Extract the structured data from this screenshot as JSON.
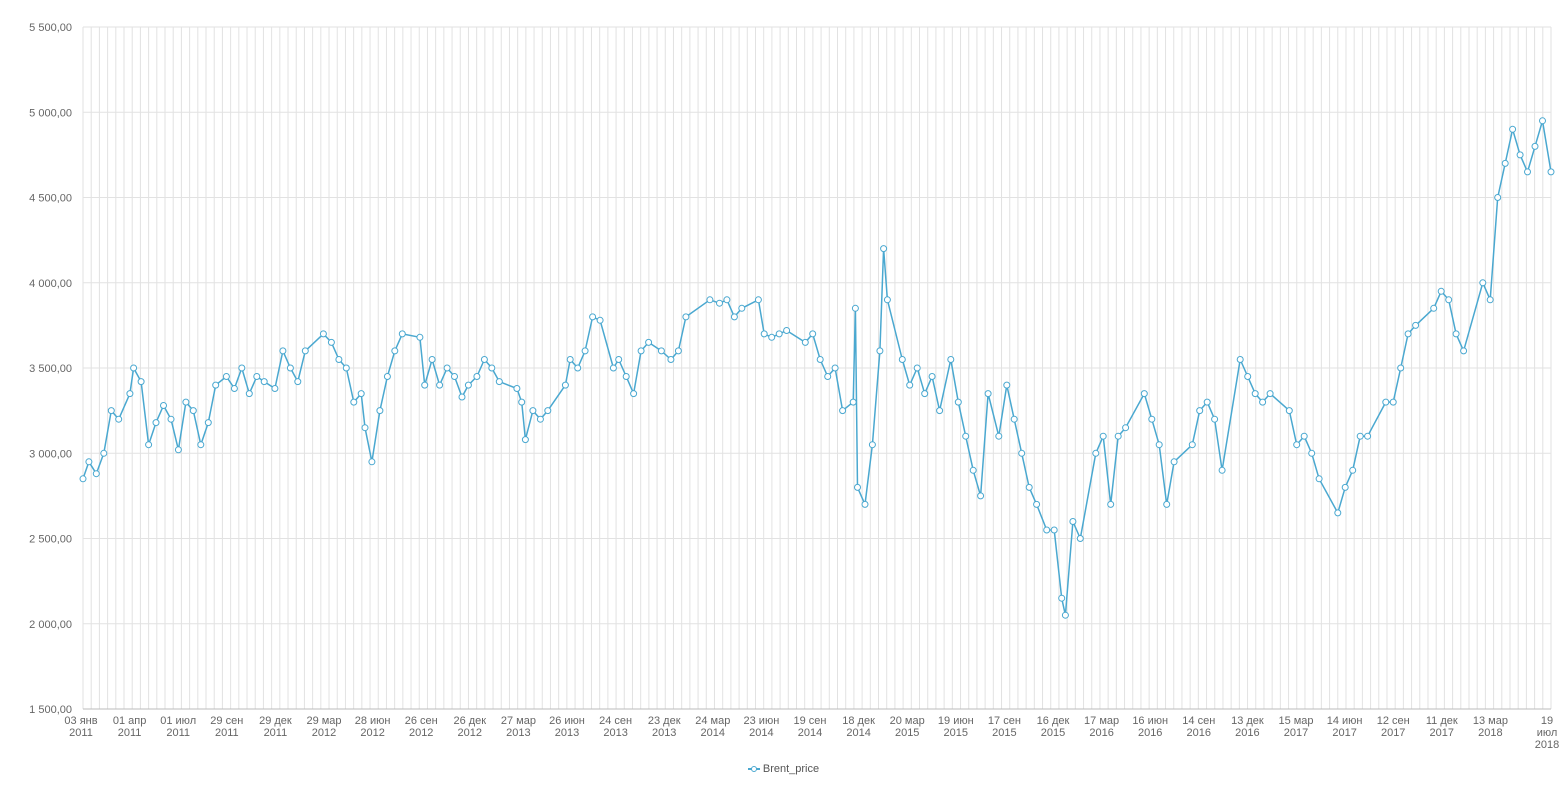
{
  "chart_data": {
    "type": "line",
    "series": [
      {
        "name": "Brent_price",
        "points": [
          [
            "03 янв 2011",
            2850
          ],
          [
            "2011-01-14",
            2950
          ],
          [
            "2011-01-28",
            2880
          ],
          [
            "2011-02-11",
            3000
          ],
          [
            "2011-02-25",
            3250
          ],
          [
            "2011-03-11",
            3200
          ],
          [
            "01 апр 2011",
            3350
          ],
          [
            "2011-04-08",
            3500
          ],
          [
            "2011-04-22",
            3420
          ],
          [
            "2011-05-06",
            3050
          ],
          [
            "2011-05-20",
            3180
          ],
          [
            "2011-06-03",
            3280
          ],
          [
            "2011-06-17",
            3200
          ],
          [
            "01 июл 2011",
            3020
          ],
          [
            "2011-07-15",
            3300
          ],
          [
            "2011-07-29",
            3250
          ],
          [
            "2011-08-12",
            3050
          ],
          [
            "2011-08-26",
            3180
          ],
          [
            "2011-09-09",
            3400
          ],
          [
            "29 сен 2011",
            3450
          ],
          [
            "2011-10-14",
            3380
          ],
          [
            "2011-10-28",
            3500
          ],
          [
            "2011-11-11",
            3350
          ],
          [
            "2011-11-25",
            3450
          ],
          [
            "2011-12-09",
            3420
          ],
          [
            "29 дек 2011",
            3380
          ],
          [
            "2012-01-13",
            3600
          ],
          [
            "2012-01-27",
            3500
          ],
          [
            "2012-02-10",
            3420
          ],
          [
            "2012-02-24",
            3600
          ],
          [
            "29 мар 2012",
            3700
          ],
          [
            "2012-04-13",
            3650
          ],
          [
            "2012-04-27",
            3550
          ],
          [
            "2012-05-11",
            3500
          ],
          [
            "2012-05-25",
            3300
          ],
          [
            "2012-06-08",
            3350
          ],
          [
            "2012-06-15",
            3150
          ],
          [
            "28 июн 2012",
            2950
          ],
          [
            "2012-07-13",
            3250
          ],
          [
            "2012-07-27",
            3450
          ],
          [
            "2012-08-10",
            3600
          ],
          [
            "2012-08-24",
            3700
          ],
          [
            "26 сен 2012",
            3680
          ],
          [
            "2012-10-05",
            3400
          ],
          [
            "2012-10-19",
            3550
          ],
          [
            "2012-11-02",
            3400
          ],
          [
            "2012-11-16",
            3500
          ],
          [
            "2012-11-30",
            3450
          ],
          [
            "2012-12-14",
            3330
          ],
          [
            "26 дек 2012",
            3400
          ],
          [
            "2013-01-11",
            3450
          ],
          [
            "2013-01-25",
            3550
          ],
          [
            "2013-02-08",
            3500
          ],
          [
            "2013-02-22",
            3420
          ],
          [
            "27 мар 2013",
            3380
          ],
          [
            "2013-04-05",
            3300
          ],
          [
            "2013-04-12",
            3080
          ],
          [
            "2013-04-26",
            3250
          ],
          [
            "2013-05-10",
            3200
          ],
          [
            "2013-05-24",
            3250
          ],
          [
            "26 июн 2013",
            3400
          ],
          [
            "2013-07-05",
            3550
          ],
          [
            "2013-07-19",
            3500
          ],
          [
            "2013-08-02",
            3600
          ],
          [
            "2013-08-16",
            3800
          ],
          [
            "2013-08-30",
            3780
          ],
          [
            "24 сен 2013",
            3500
          ],
          [
            "2013-10-04",
            3550
          ],
          [
            "2013-10-18",
            3450
          ],
          [
            "2013-11-01",
            3350
          ],
          [
            "2013-11-15",
            3600
          ],
          [
            "2013-11-29",
            3650
          ],
          [
            "23 дек 2013",
            3600
          ],
          [
            "2014-01-10",
            3550
          ],
          [
            "2014-01-24",
            3600
          ],
          [
            "2014-02-07",
            3800
          ],
          [
            "24 мар 2014",
            3900
          ],
          [
            "2014-04-11",
            3880
          ],
          [
            "2014-04-25",
            3900
          ],
          [
            "2014-05-09",
            3800
          ],
          [
            "2014-05-23",
            3850
          ],
          [
            "23 июн 2014",
            3900
          ],
          [
            "2014-07-04",
            3700
          ],
          [
            "2014-07-18",
            3680
          ],
          [
            "2014-08-01",
            3700
          ],
          [
            "2014-08-15",
            3720
          ],
          [
            "19 сен 2014",
            3650
          ],
          [
            "2014-10-03",
            3700
          ],
          [
            "2014-10-17",
            3550
          ],
          [
            "2014-10-31",
            3450
          ],
          [
            "2014-11-14",
            3500
          ],
          [
            "2014-11-28",
            3250
          ],
          [
            "18 дек 2014",
            3300
          ],
          [
            "2014-12-22",
            3850
          ],
          [
            "2014-12-26",
            2800
          ],
          [
            "2015-01-09",
            2700
          ],
          [
            "2015-01-23",
            3050
          ],
          [
            "2015-02-06",
            3600
          ],
          [
            "2015-02-13",
            4200
          ],
          [
            "2015-02-20",
            3900
          ],
          [
            "20 мар 2015",
            3550
          ],
          [
            "2015-04-03",
            3400
          ],
          [
            "2015-04-17",
            3500
          ],
          [
            "2015-05-01",
            3350
          ],
          [
            "2015-05-15",
            3450
          ],
          [
            "2015-05-29",
            3250
          ],
          [
            "19 июн 2015",
            3550
          ],
          [
            "2015-07-03",
            3300
          ],
          [
            "2015-07-17",
            3100
          ],
          [
            "2015-07-31",
            2900
          ],
          [
            "2015-08-14",
            2750
          ],
          [
            "2015-08-28",
            3350
          ],
          [
            "17 сен 2015",
            3100
          ],
          [
            "2015-10-02",
            3400
          ],
          [
            "2015-10-16",
            3200
          ],
          [
            "2015-10-30",
            3000
          ],
          [
            "2015-11-13",
            2800
          ],
          [
            "2015-11-27",
            2700
          ],
          [
            "16 дек 2015",
            2550
          ],
          [
            "2015-12-30",
            2550
          ],
          [
            "2016-01-13",
            2150
          ],
          [
            "2016-01-20",
            2050
          ],
          [
            "2016-02-03",
            2600
          ],
          [
            "2016-02-17",
            2500
          ],
          [
            "17 мар 2016",
            3000
          ],
          [
            "2016-03-31",
            3100
          ],
          [
            "2016-04-14",
            2700
          ],
          [
            "2016-04-28",
            3100
          ],
          [
            "2016-05-12",
            3150
          ],
          [
            "16 июн 2016",
            3350
          ],
          [
            "2016-06-30",
            3200
          ],
          [
            "2016-07-14",
            3050
          ],
          [
            "2016-07-28",
            2700
          ],
          [
            "2016-08-11",
            2950
          ],
          [
            "14 сен 2016",
            3050
          ],
          [
            "2016-09-28",
            3250
          ],
          [
            "2016-10-12",
            3300
          ],
          [
            "2016-10-26",
            3200
          ],
          [
            "2016-11-09",
            2900
          ],
          [
            "13 дек 2016",
            3550
          ],
          [
            "2016-12-27",
            3450
          ],
          [
            "2017-01-10",
            3350
          ],
          [
            "2017-01-24",
            3300
          ],
          [
            "2017-02-07",
            3350
          ],
          [
            "15 мар 2017",
            3250
          ],
          [
            "2017-03-29",
            3050
          ],
          [
            "2017-04-12",
            3100
          ],
          [
            "2017-04-26",
            3000
          ],
          [
            "2017-05-10",
            2850
          ],
          [
            "14 июн 2017",
            2650
          ],
          [
            "2017-06-28",
            2800
          ],
          [
            "2017-07-12",
            2900
          ],
          [
            "2017-07-26",
            3100
          ],
          [
            "2017-08-09",
            3100
          ],
          [
            "12 сен 2017",
            3300
          ],
          [
            "2017-09-26",
            3300
          ],
          [
            "2017-10-10",
            3500
          ],
          [
            "2017-10-24",
            3700
          ],
          [
            "2017-11-07",
            3750
          ],
          [
            "11 дек 2017",
            3850
          ],
          [
            "2017-12-25",
            3950
          ],
          [
            "2018-01-08",
            3900
          ],
          [
            "2018-01-22",
            3700
          ],
          [
            "2018-02-05",
            3600
          ],
          [
            "13 мар 2018",
            4000
          ],
          [
            "2018-03-27",
            3900
          ],
          [
            "2018-04-10",
            4500
          ],
          [
            "2018-04-24",
            4700
          ],
          [
            "2018-05-08",
            4900
          ],
          [
            "2018-05-22",
            4750
          ],
          [
            "2018-06-05",
            4650
          ],
          [
            "2018-06-19",
            4800
          ],
          [
            "2018-07-03",
            4950
          ],
          [
            "19 июл 2018",
            4650
          ]
        ]
      }
    ],
    "x_ticks": [
      [
        "03 янв",
        "2011"
      ],
      [
        "01 апр",
        "2011"
      ],
      [
        "01 июл",
        "2011"
      ],
      [
        "29 сен",
        "2011"
      ],
      [
        "29 дек",
        "2011"
      ],
      [
        "29 мар",
        "2012"
      ],
      [
        "28 июн",
        "2012"
      ],
      [
        "26 сен",
        "2012"
      ],
      [
        "26 дек",
        "2012"
      ],
      [
        "27 мар",
        "2013"
      ],
      [
        "26 июн",
        "2013"
      ],
      [
        "24 сен",
        "2013"
      ],
      [
        "23 дек",
        "2013"
      ],
      [
        "24 мар",
        "2014"
      ],
      [
        "23 июн",
        "2014"
      ],
      [
        "19 сен",
        "2014"
      ],
      [
        "18 дек",
        "2014"
      ],
      [
        "20 мар",
        "2015"
      ],
      [
        "19 июн",
        "2015"
      ],
      [
        "17 сен",
        "2015"
      ],
      [
        "16 дек",
        "2015"
      ],
      [
        "17 мар",
        "2016"
      ],
      [
        "16 июн",
        "2016"
      ],
      [
        "14 сен",
        "2016"
      ],
      [
        "13 дек",
        "2016"
      ],
      [
        "15 мар",
        "2017"
      ],
      [
        "14 июн",
        "2017"
      ],
      [
        "12 сен",
        "2017"
      ],
      [
        "11 дек",
        "2017"
      ],
      [
        "13 мар",
        "2018"
      ],
      [
        "19",
        "июл",
        "2018"
      ]
    ],
    "y_ticks": [
      "1 500,00",
      "2 000,00",
      "2 500,00",
      "3 000,00",
      "3 500,00",
      "4 000,00",
      "4 500,00",
      "5 000,00",
      "5 500,00"
    ],
    "ylim": [
      1500,
      5500
    ],
    "xlim": [
      "2011-01-03",
      "2018-07-19"
    ],
    "grid": true,
    "legend_position": "bottom-center",
    "colors": {
      "line": "#4aa8d0",
      "marker_fill": "#ffffff",
      "grid": "#e2e2e2",
      "axis": "#bbbbbb"
    }
  }
}
